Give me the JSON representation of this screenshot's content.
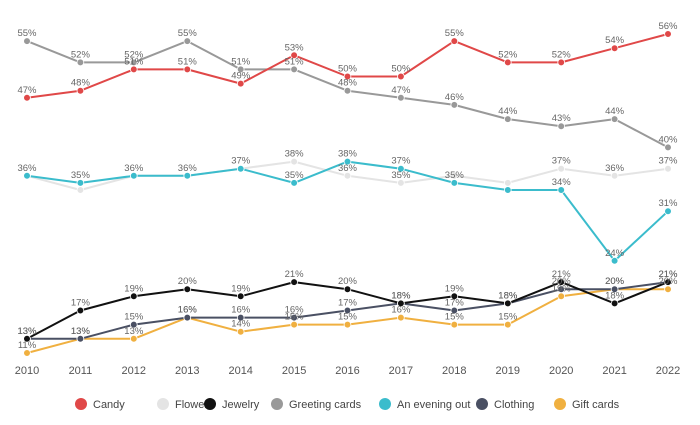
{
  "chart_data": {
    "type": "line",
    "title": "",
    "xlabel": "",
    "ylabel": "",
    "x": [
      "2010",
      "2011",
      "2012",
      "2013",
      "2014",
      "2015",
      "2016",
      "2017",
      "2018",
      "2019",
      "2020",
      "2021",
      "2022"
    ],
    "ylim": [
      11,
      56
    ],
    "grid": false,
    "legend_position": "bottom",
    "series": [
      {
        "name": "Candy",
        "color": "#e04848",
        "values": [
          47,
          48,
          51,
          51,
          49,
          53,
          50,
          50,
          55,
          52,
          52,
          54,
          56
        ],
        "labels": [
          "47%",
          "48%",
          "51%",
          "51%",
          "49%",
          "53%",
          "50%",
          "50%",
          "55%",
          "52%",
          "52%",
          "54%",
          "56%"
        ]
      },
      {
        "name": "Flowers",
        "color": "#e4e4e4",
        "values": [
          36,
          34,
          36,
          36,
          37,
          38,
          36,
          35,
          36,
          35,
          37,
          36,
          37
        ],
        "labels": [
          "",
          "",
          "",
          "",
          "",
          "38%",
          "36%",
          "35%",
          "",
          "",
          "37%",
          "36%",
          "37%"
        ]
      },
      {
        "name": "Jewelry",
        "color": "#111111",
        "values": [
          13,
          17,
          19,
          20,
          19,
          21,
          20,
          18,
          19,
          18,
          21,
          18,
          21
        ],
        "labels": [
          "13%",
          "17%",
          "19%",
          "20%",
          "19%",
          "21%",
          "20%",
          "18%",
          "19%",
          "18%",
          "21%",
          "18%",
          "21%"
        ]
      },
      {
        "name": "Greeting cards",
        "color": "#999999",
        "values": [
          55,
          52,
          52,
          55,
          51,
          51,
          48,
          47,
          46,
          44,
          43,
          44,
          40
        ],
        "labels": [
          "55%",
          "52%",
          "52%",
          "55%",
          "51%",
          "51%",
          "48%",
          "47%",
          "46%",
          "44%",
          "43%",
          "44%",
          "40%"
        ]
      },
      {
        "name": "An evening out",
        "color": "#3bbccc",
        "values": [
          36,
          35,
          36,
          36,
          37,
          35,
          38,
          37,
          35,
          34,
          34,
          24,
          31
        ],
        "labels": [
          "36%",
          "35%",
          "36%",
          "36%",
          "37%",
          "35%",
          "38%",
          "37%",
          "35%",
          "",
          "34%",
          "24%",
          "31%"
        ]
      },
      {
        "name": "Clothing",
        "color": "#4a5063",
        "values": [
          13,
          13,
          15,
          16,
          16,
          16,
          17,
          18,
          17,
          18,
          20,
          20,
          21
        ],
        "labels": [
          "13%",
          "13%",
          "15%",
          "16%",
          "16%",
          "16%",
          "17%",
          "18%",
          "17%",
          "18%",
          "20%",
          "20%",
          "21%"
        ]
      },
      {
        "name": "Gift cards",
        "color": "#f0b040",
        "values": [
          11,
          13,
          13,
          16,
          14,
          15,
          15,
          16,
          15,
          15,
          19,
          20,
          20
        ],
        "labels": [
          "11%",
          "13%",
          "13%",
          "16%",
          "14%",
          "15%",
          "15%",
          "16%",
          "15%",
          "15%",
          "19%",
          "20%",
          "20%"
        ]
      }
    ]
  }
}
